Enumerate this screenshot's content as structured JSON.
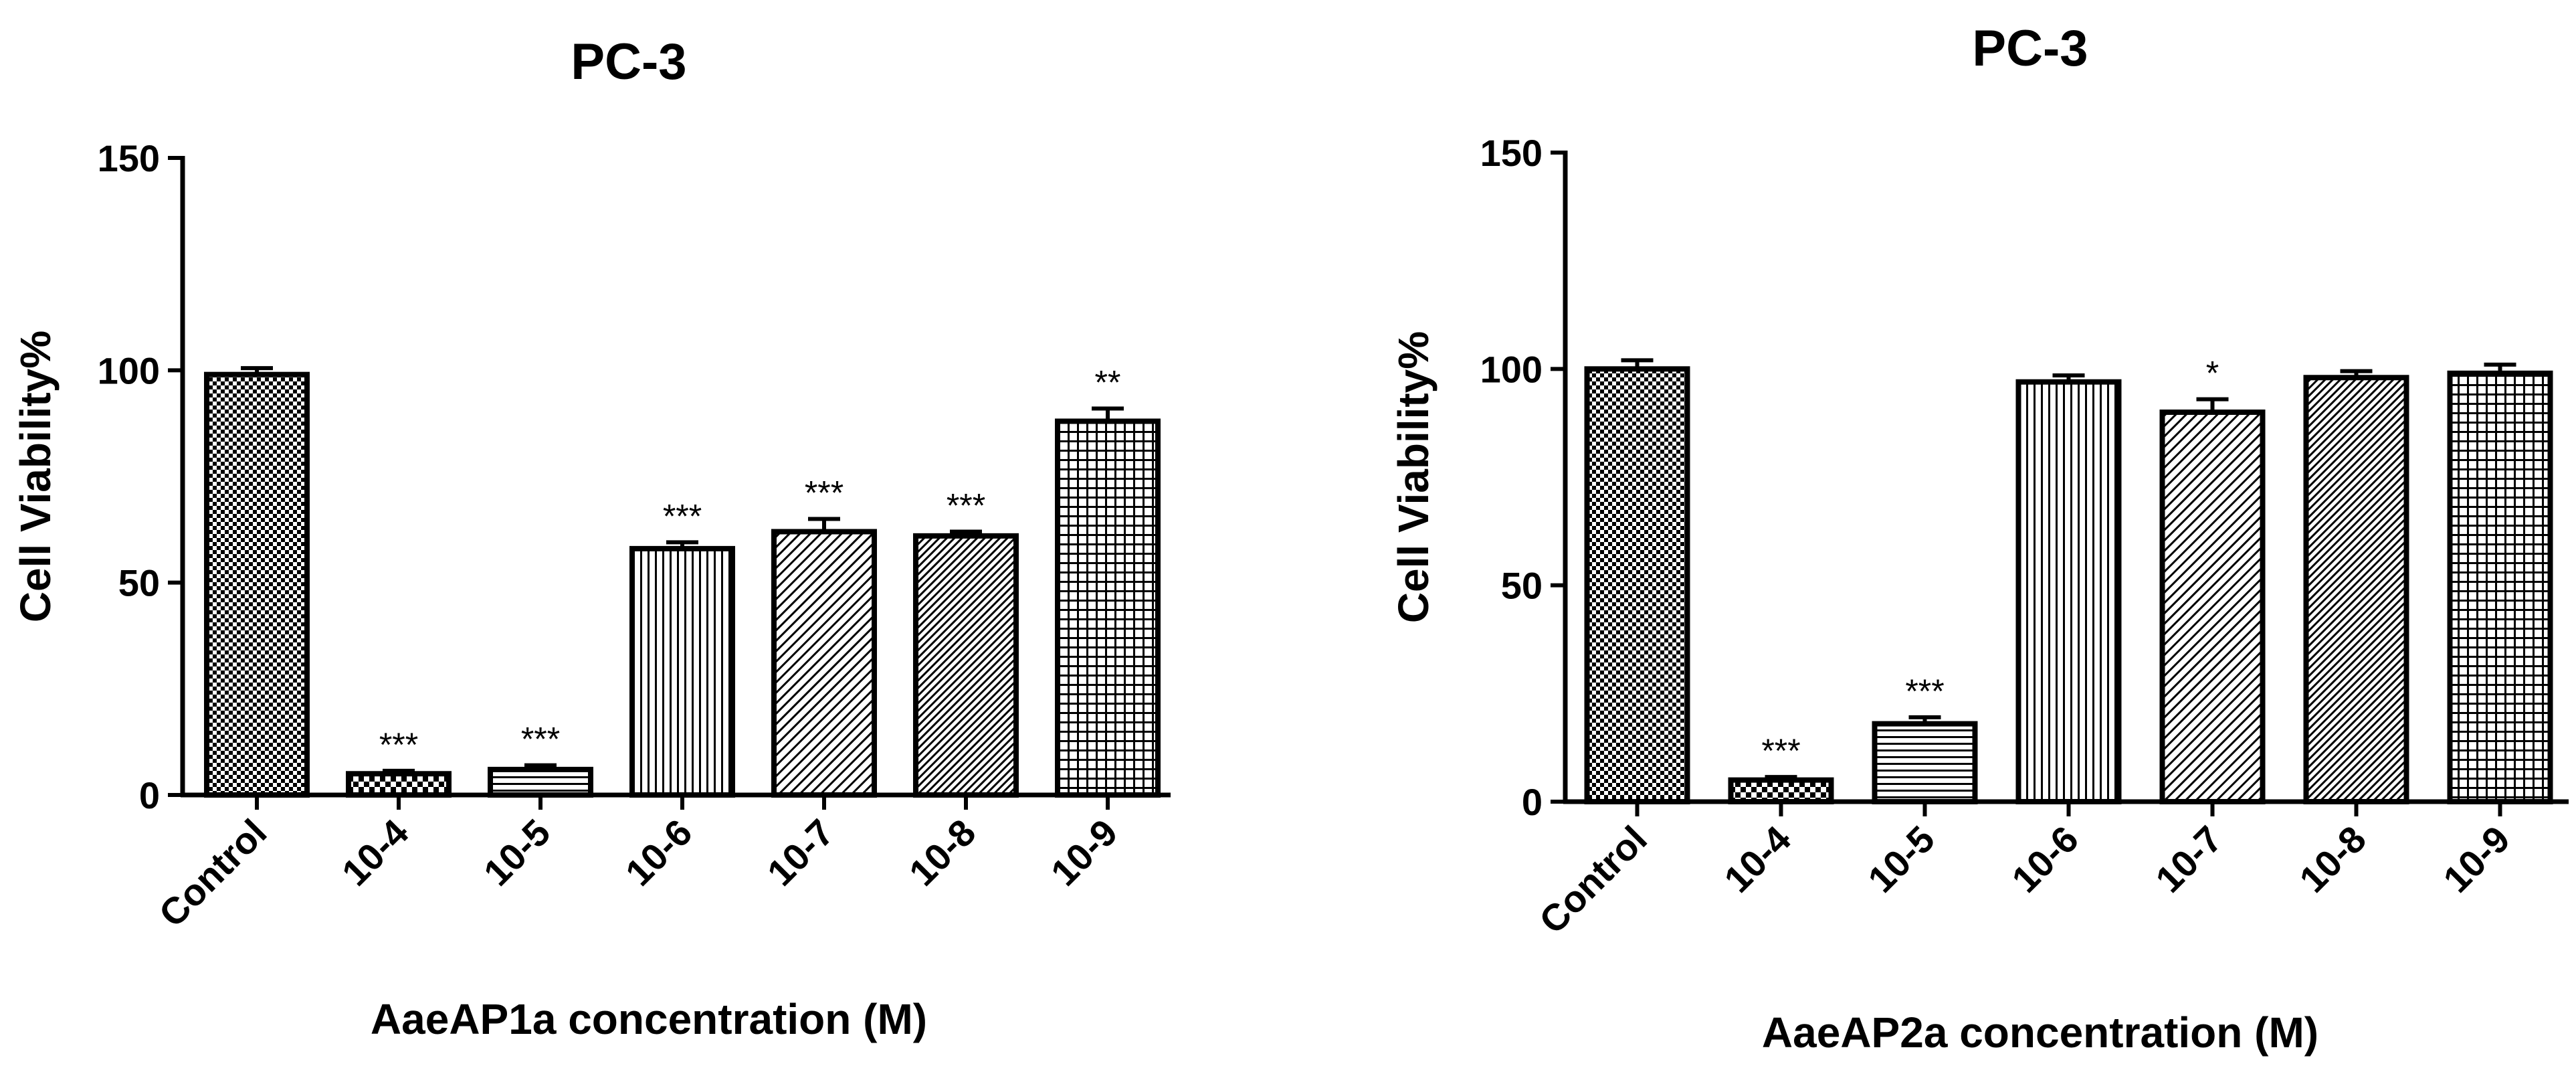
{
  "chart_data": [
    {
      "type": "bar",
      "title": "PC-3",
      "xlabel": "AaeAP1a concentration (M)",
      "ylabel": "Cell Viability%",
      "ylim": [
        0,
        150
      ],
      "yticks": [
        "0",
        "50",
        "100",
        "150"
      ],
      "categories": [
        "Control",
        "10-4",
        "10-5",
        "10-6",
        "10-7",
        "10-8",
        "10-9"
      ],
      "values": [
        99,
        5,
        6,
        58,
        62,
        61,
        88
      ],
      "errors": [
        1.5,
        0.7,
        1.0,
        1.5,
        3.0,
        1.0,
        3.0
      ],
      "significance": [
        "",
        "***",
        "***",
        "***",
        "***",
        "***",
        "**"
      ],
      "patterns": [
        "checker",
        "checker-small",
        "hlines",
        "vlines",
        "diag-sparse",
        "diag-dense",
        "grid"
      ]
    },
    {
      "type": "bar",
      "title": "PC-3",
      "xlabel": "AaeAP2a concentration (M)",
      "ylabel": "Cell Viability%",
      "ylim": [
        0,
        150
      ],
      "yticks": [
        "0",
        "50",
        "100",
        "150"
      ],
      "categories": [
        "Control",
        "10-4",
        "10-5",
        "10-6",
        "10-7",
        "10-8",
        "10-9"
      ],
      "values": [
        100,
        5,
        18,
        97,
        90,
        98,
        99
      ],
      "errors": [
        2.0,
        0.7,
        1.5,
        1.5,
        3.0,
        1.5,
        2.0
      ],
      "significance": [
        "",
        "***",
        "***",
        "",
        "*",
        "",
        ""
      ],
      "patterns": [
        "checker",
        "checker-small",
        "hlines",
        "vlines",
        "diag-sparse",
        "diag-dense",
        "grid"
      ]
    }
  ]
}
